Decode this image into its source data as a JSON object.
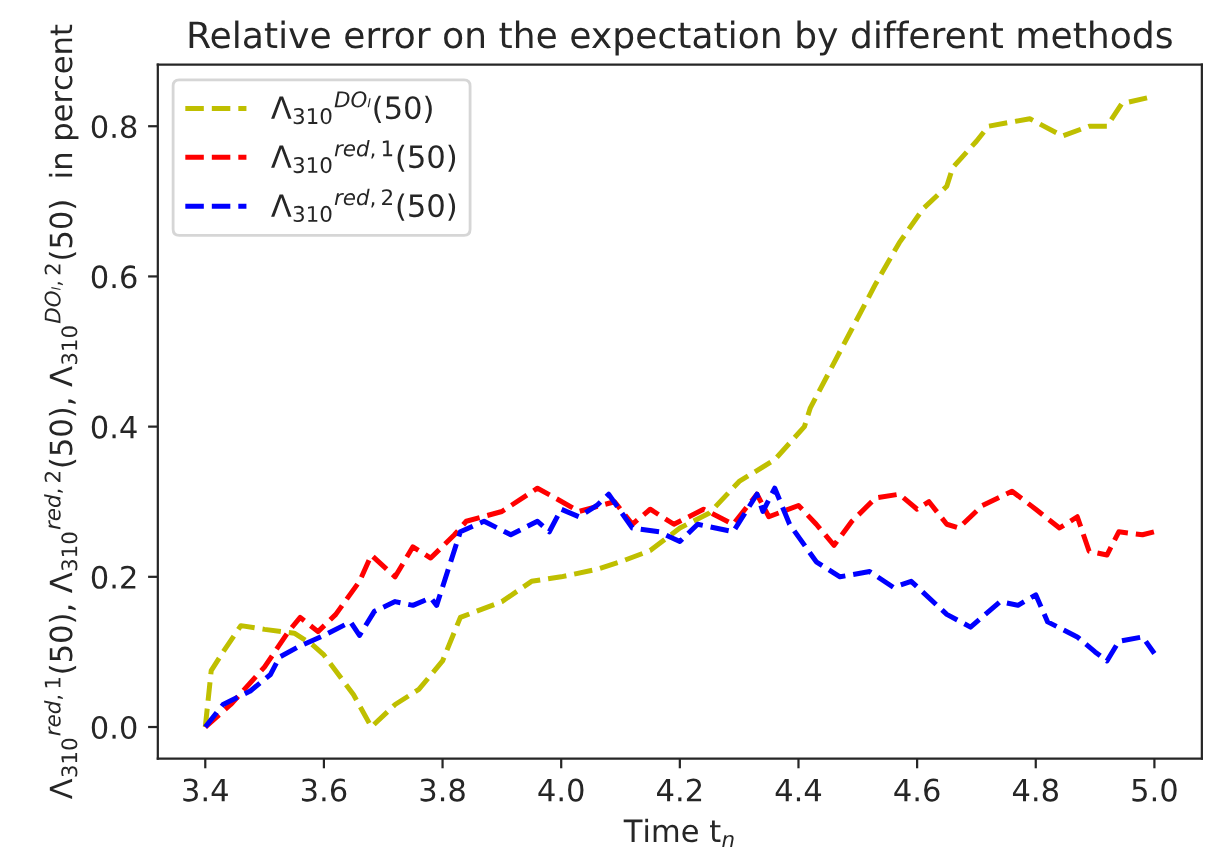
{
  "chart_data": {
    "type": "line",
    "title": "Relative error on the expectation by different methods",
    "xlabel": "Time t$_{n}$",
    "ylabel": "Λ$_{310}$$^{red,1}$(50), Λ$_{310}$$^{red,2}$(50), Λ$_{310}$$^{DOₗ,2}$(50)  in percent",
    "xlim": [
      3.32,
      5.08
    ],
    "xticks": [
      {
        "value": 3.4,
        "label": "3.4"
      },
      {
        "value": 3.6,
        "label": "3.6"
      },
      {
        "value": 3.8,
        "label": "3.8"
      },
      {
        "value": 4.0,
        "label": "4.0"
      },
      {
        "value": 4.2,
        "label": "4.2"
      },
      {
        "value": 4.4,
        "label": "4.4"
      },
      {
        "value": 4.6,
        "label": "4.6"
      },
      {
        "value": 4.8,
        "label": "4.8"
      },
      {
        "value": 5.0,
        "label": "5.0"
      }
    ],
    "ylim": [
      -0.042,
      0.882
    ],
    "yticks": [
      {
        "value": 0,
        "label": "0.0"
      },
      {
        "value": 0.2,
        "label": "0.2"
      },
      {
        "value": 0.4,
        "label": "0.4"
      },
      {
        "value": 0.6,
        "label": "0.6"
      },
      {
        "value": 0.8,
        "label": "0.8"
      }
    ],
    "grid": false,
    "legend": "top left",
    "line_style": "dashed",
    "marker": "none",
    "series": [
      {
        "name": "Λ$_{310}$$^{DOₗ}$(50)",
        "color": "#bfbf00",
        "x": [
          3.4,
          3.41,
          3.43,
          3.46,
          3.5,
          3.55,
          3.58,
          3.6,
          3.65,
          3.68,
          3.72,
          3.76,
          3.8,
          3.83,
          3.9,
          3.95,
          4.0,
          4.06,
          4.1,
          4.15,
          4.2,
          4.25,
          4.3,
          4.36,
          4.41,
          4.42,
          4.45,
          4.49,
          4.53,
          4.57,
          4.61,
          4.65,
          4.66,
          4.7,
          4.72,
          4.79,
          4.845,
          4.89,
          4.92,
          4.945,
          5.0
        ],
        "values": [
          0,
          0.075,
          0.1,
          0.135,
          0.13,
          0.125,
          0.11,
          0.096,
          0.043,
          0,
          0.03,
          0.05,
          0.088,
          0.146,
          0.167,
          0.194,
          0.2,
          0.21,
          0.22,
          0.235,
          0.265,
          0.285,
          0.327,
          0.356,
          0.4,
          0.425,
          0.47,
          0.53,
          0.59,
          0.645,
          0.69,
          0.72,
          0.745,
          0.78,
          0.8,
          0.81,
          0.787,
          0.8,
          0.8,
          0.83,
          0.84
        ]
      },
      {
        "name": "Λ$_{310}$$^{red,1}$(50)",
        "color": "#ff0000",
        "x": [
          3.4,
          3.443,
          3.5,
          3.54,
          3.56,
          3.59,
          3.62,
          3.66,
          3.68,
          3.72,
          3.75,
          3.78,
          3.82,
          3.84,
          3.9,
          3.96,
          3.99,
          4.03,
          4.09,
          4.12,
          4.15,
          4.19,
          4.24,
          4.29,
          4.33,
          4.35,
          4.4,
          4.43,
          4.46,
          4.49,
          4.53,
          4.57,
          4.6,
          4.62,
          4.65,
          4.67,
          4.71,
          4.76,
          4.8,
          4.84,
          4.87,
          4.89,
          4.92,
          4.94,
          4.98,
          5.0
        ],
        "values": [
          0,
          0.03,
          0.08,
          0.127,
          0.146,
          0.127,
          0.15,
          0.194,
          0.229,
          0.2,
          0.24,
          0.225,
          0.256,
          0.274,
          0.287,
          0.318,
          0.305,
          0.287,
          0.3,
          0.27,
          0.29,
          0.27,
          0.29,
          0.27,
          0.31,
          0.28,
          0.295,
          0.27,
          0.242,
          0.274,
          0.305,
          0.31,
          0.29,
          0.3,
          0.27,
          0.265,
          0.295,
          0.314,
          0.29,
          0.265,
          0.28,
          0.234,
          0.229,
          0.26,
          0.256,
          0.26
        ]
      },
      {
        "name": "Λ$_{310}$$^{red,2}$(50)",
        "color": "#0000ff",
        "x": [
          3.4,
          3.43,
          3.476,
          3.51,
          3.525,
          3.555,
          3.6,
          3.645,
          3.66,
          3.685,
          3.72,
          3.75,
          3.78,
          3.79,
          3.83,
          3.87,
          3.915,
          3.96,
          3.98,
          4.0,
          4.03,
          4.06,
          4.08,
          4.12,
          4.165,
          4.2,
          4.23,
          4.29,
          4.33,
          4.34,
          4.36,
          4.385,
          4.43,
          4.47,
          4.52,
          4.56,
          4.59,
          4.65,
          4.69,
          4.74,
          4.77,
          4.8,
          4.82,
          4.87,
          4.9,
          4.92,
          4.94,
          4.98,
          5.0
        ],
        "values": [
          0,
          0.03,
          0.048,
          0.07,
          0.093,
          0.106,
          0.122,
          0.14,
          0.122,
          0.154,
          0.167,
          0.162,
          0.172,
          0.162,
          0.26,
          0.274,
          0.256,
          0.274,
          0.26,
          0.29,
          0.28,
          0.295,
          0.31,
          0.265,
          0.26,
          0.247,
          0.27,
          0.26,
          0.31,
          0.287,
          0.318,
          0.27,
          0.22,
          0.2,
          0.207,
          0.186,
          0.194,
          0.15,
          0.133,
          0.167,
          0.162,
          0.176,
          0.14,
          0.12,
          0.1,
          0.088,
          0.114,
          0.12,
          0.098
        ]
      }
    ]
  }
}
